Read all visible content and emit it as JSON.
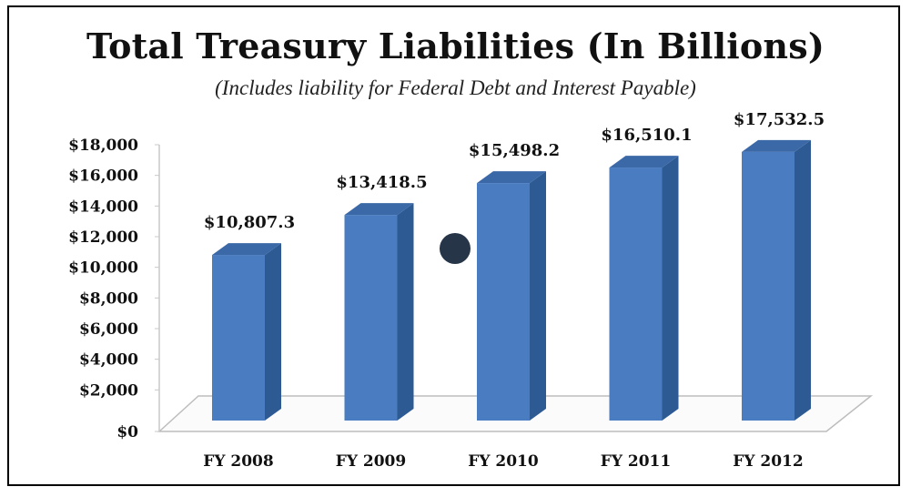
{
  "chart_data": {
    "type": "bar",
    "title": "Total Treasury Liabilities (In Billions)",
    "subtitle": "(Includes liability for Federal Debt and Interest Payable)",
    "categories": [
      "FY 2008",
      "FY 2009",
      "FY 2010",
      "FY 2011",
      "FY 2012"
    ],
    "values": [
      10807.3,
      13418.5,
      15498.2,
      16510.1,
      17532.5
    ],
    "data_labels": [
      "$10,807.3",
      "$13,418.5",
      "$15,498.2",
      "$16,510.1",
      "$17,532.5"
    ],
    "yticks": [
      0,
      2000,
      4000,
      6000,
      8000,
      10000,
      12000,
      14000,
      16000,
      18000
    ],
    "ytick_labels": [
      "$0",
      "$2,000",
      "$4,000",
      "$6,000",
      "$8,000",
      "$10,000",
      "$12,000",
      "$14,000",
      "$16,000",
      "$18,000"
    ],
    "ylim": [
      0,
      18000
    ],
    "grid": false,
    "bar_style": "3d-column",
    "colors": {
      "bar_front": "#4A7CC2",
      "bar_side": "#2D5A93",
      "bar_top": "#3B69A8",
      "marker": "#263547"
    }
  }
}
